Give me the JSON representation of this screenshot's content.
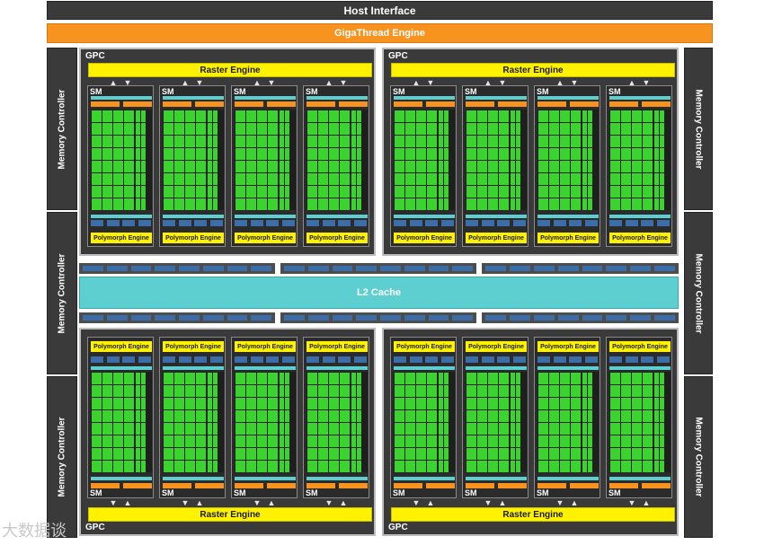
{
  "header": {
    "host_interface": "Host Interface",
    "gigathread_engine": "GigaThread Engine"
  },
  "memory_controller_label": "Memory Controller",
  "gpc_label": "GPC",
  "raster_engine_label": "Raster Engine",
  "sm_label": "SM",
  "polymorph_engine_label": "Polymorph Engine",
  "l2_cache_label": "L2 Cache",
  "watermark": {
    "text": "大数据谈"
  },
  "colors": {
    "host_bg": "#3a3a3a",
    "gigathread": "#f7931e",
    "raster": "#fff200",
    "polymorph": "#fff200",
    "cuda_core": "#3bd42f",
    "l2_cache": "#5ecfd0",
    "register_file": "#5ecfd0",
    "warp_scheduler": "#f7931e",
    "texture_unit": "#3b6ea8"
  }
}
